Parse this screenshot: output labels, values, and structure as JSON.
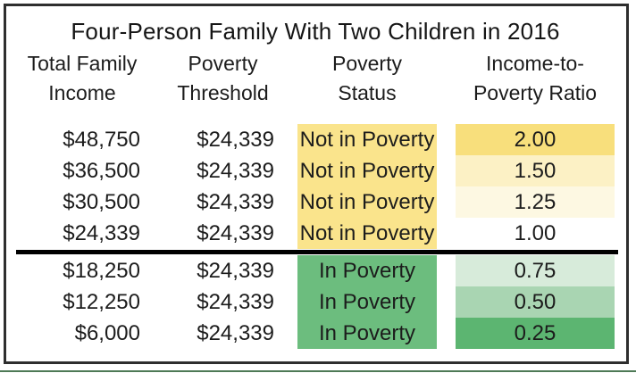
{
  "title": "Four-Person Family With Two Children in 2016",
  "table": {
    "columns": [
      {
        "line1": "Total Family",
        "line2": "Income"
      },
      {
        "line1": "Poverty",
        "line2": "Threshold"
      },
      {
        "line1": "Poverty",
        "line2": "Status"
      },
      {
        "line1": "Income-to-",
        "line2": "Poverty Ratio"
      }
    ],
    "rows": [
      {
        "income": "$48,750",
        "threshold": "$24,339",
        "status": "Not in Poverty",
        "ratio": "2.00",
        "status_bg": "#FAE48C",
        "ratio_bg": "#F8DF7C"
      },
      {
        "income": "$36,500",
        "threshold": "$24,339",
        "status": "Not in Poverty",
        "ratio": "1.50",
        "status_bg": "#FAE48C",
        "ratio_bg": "#FCF1C5"
      },
      {
        "income": "$30,500",
        "threshold": "$24,339",
        "status": "Not in Poverty",
        "ratio": "1.25",
        "status_bg": "#FAE48C",
        "ratio_bg": "#FDF8E2"
      },
      {
        "income": "$24,339",
        "threshold": "$24,339",
        "status": "Not in Poverty",
        "ratio": "1.00",
        "status_bg": "#FAE48C",
        "ratio_bg": "#FFFFFF"
      },
      {
        "income": "$18,250",
        "threshold": "$24,339",
        "status": "In Poverty",
        "ratio": "0.75",
        "status_bg": "#6CBD7E",
        "ratio_bg": "#D7EBDA"
      },
      {
        "income": "$12,250",
        "threshold": "$24,339",
        "status": "In Poverty",
        "ratio": "0.50",
        "status_bg": "#6CBD7E",
        "ratio_bg": "#A9D5B2"
      },
      {
        "income": "$6,000",
        "threshold": "$24,339",
        "status": "In Poverty",
        "ratio": "0.25",
        "status_bg": "#6CBD7E",
        "ratio_bg": "#5CB571"
      }
    ]
  },
  "colors": {
    "not_in_poverty_yellow": "#FAE48C",
    "in_poverty_green": "#6CBD7E",
    "poverty_line_divider": "#000000",
    "frame_border": "#2e2e2e",
    "bottom_accent_green": "#4E7A56"
  },
  "chart_data": {
    "type": "table",
    "title": "Four-Person Family With Two Children in 2016",
    "columns": [
      "Total Family Income",
      "Poverty Threshold",
      "Poverty Status",
      "Income-to-Poverty Ratio"
    ],
    "rows": [
      [
        "$48,750",
        "$24,339",
        "Not in Poverty",
        "2.00"
      ],
      [
        "$36,500",
        "$24,339",
        "Not in Poverty",
        "1.50"
      ],
      [
        "$30,500",
        "$24,339",
        "Not in Poverty",
        "1.25"
      ],
      [
        "$24,339",
        "$24,339",
        "Not in Poverty",
        "1.00"
      ],
      [
        "$18,250",
        "$24,339",
        "In Poverty",
        "0.75"
      ],
      [
        "$12,250",
        "$24,339",
        "In Poverty",
        "0.50"
      ],
      [
        "$6,000",
        "$24,339",
        "In Poverty",
        "0.25"
      ]
    ],
    "notes": "Thick black horizontal rule separates Not in Poverty rows (ratio >= 1.00) from In Poverty rows (ratio < 1.00). Ratio cells shaded yellow above the line (darker = higher ratio) and green below (darker = lower ratio)."
  }
}
